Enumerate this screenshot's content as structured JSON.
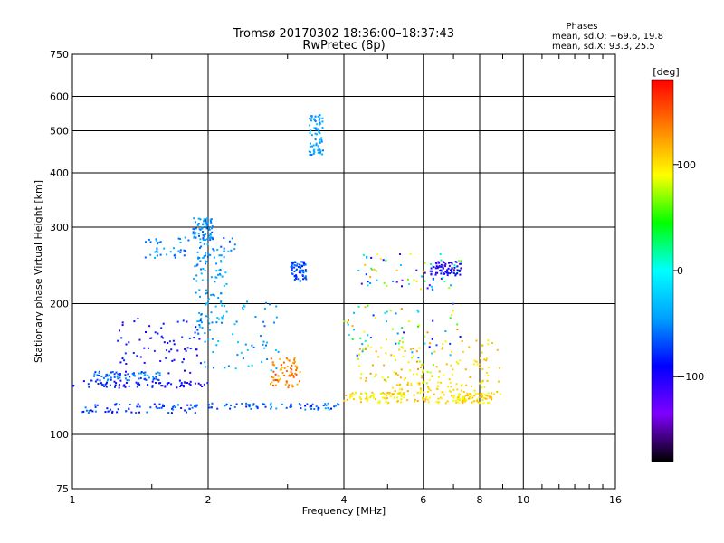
{
  "chart_data": {
    "type": "scatter",
    "title": "Tromsø 20170302 18:36:00–18:37:43",
    "subtitle": "RwPretec (8p)",
    "xlabel": "Frequency [MHz]",
    "ylabel": "Stationary phase Virtual Height [km]",
    "x_scale": "log",
    "y_scale": "log",
    "xlim": [
      1,
      16
    ],
    "ylim": [
      75,
      750
    ],
    "x_ticks": [
      1,
      2,
      4,
      6,
      8,
      10,
      16
    ],
    "x_tick_labels": [
      "1",
      "2",
      "4",
      "6",
      "8",
      "10",
      "16"
    ],
    "y_ticks": [
      75,
      100,
      200,
      300,
      400,
      500,
      600,
      750
    ],
    "y_tick_labels": [
      "75",
      "100",
      "200",
      "300",
      "400",
      "500",
      "600",
      "750"
    ],
    "grid": true,
    "info": {
      "heading": "Phases",
      "line1": "mean, sd,O: −69.6, 19.8",
      "line2": "mean, sd,X:  93.3, 25.5"
    },
    "colorbar": {
      "label": "[deg]",
      "ticks": [
        100,
        0,
        -100
      ],
      "tick_labels": [
        "100",
        "0",
        "−100"
      ],
      "range": [
        -180,
        180
      ]
    },
    "colors": [
      "#000000",
      "#7f00ff",
      "#0000ff",
      "#00a0ff",
      "#00ffff",
      "#00ff00",
      "#ffff00",
      "#ff8000",
      "#ff0000"
    ],
    "clusters": [
      {
        "name": "E-layer low trace",
        "f": [
          1.0,
          2.0
        ],
        "h": [
          128,
          133
        ],
        "phase": [
          -110,
          -70
        ]
      },
      {
        "name": "low trace 2",
        "f": [
          1.05,
          1.9
        ],
        "h": [
          112,
          118
        ],
        "phase": [
          -100,
          -50
        ]
      },
      {
        "name": "low trace cyan",
        "f": [
          2.0,
          3.9
        ],
        "h": [
          114,
          118
        ],
        "phase": [
          -90,
          -40
        ]
      },
      {
        "name": "low blue line",
        "f": [
          1.1,
          1.6
        ],
        "h": [
          133,
          140
        ],
        "phase": [
          -80,
          -40
        ]
      },
      {
        "name": "F1 blue cluster",
        "f": [
          1.25,
          1.95
        ],
        "h": [
          138,
          185
        ],
        "phase": [
          -110,
          -70
        ]
      },
      {
        "name": "cyan streaks",
        "f": [
          1.9,
          2.9
        ],
        "h": [
          140,
          205
        ],
        "phase": [
          -60,
          -20
        ]
      },
      {
        "name": "cyan column",
        "f": [
          1.85,
          2.2
        ],
        "h": [
          180,
          260
        ],
        "phase": [
          -60,
          -25
        ]
      },
      {
        "name": "upper layer cyan",
        "f": [
          1.45,
          2.3
        ],
        "h": [
          255,
          285
        ],
        "phase": [
          -70,
          -30
        ]
      },
      {
        "name": "high cyan",
        "f": [
          1.85,
          2.05
        ],
        "h": [
          280,
          315
        ],
        "phase": [
          -70,
          -30
        ]
      },
      {
        "name": "orange patch",
        "f": [
          2.75,
          3.2
        ],
        "h": [
          128,
          150
        ],
        "phase": [
          110,
          160
        ]
      },
      {
        "name": "plume 3.5",
        "f": [
          3.35,
          3.6
        ],
        "h": [
          440,
          545
        ],
        "phase": [
          -60,
          -30
        ]
      },
      {
        "name": "plume 3.1",
        "f": [
          3.05,
          3.3
        ],
        "h": [
          225,
          250
        ],
        "phase": [
          -90,
          -50
        ]
      },
      {
        "name": "E mid yellow",
        "f": [
          4.0,
          5.5
        ],
        "h": [
          118,
          125
        ],
        "phase": [
          80,
          120
        ]
      },
      {
        "name": "yellow lines",
        "f": [
          5.0,
          7.5
        ],
        "h": [
          118,
          132
        ],
        "phase": [
          90,
          120
        ]
      },
      {
        "name": "yellow rising",
        "f": [
          4.3,
          6.5
        ],
        "h": [
          130,
          160
        ],
        "phase": [
          70,
          130
        ]
      },
      {
        "name": "mixed F cluster",
        "f": [
          4.0,
          7.5
        ],
        "h": [
          150,
          200
        ],
        "phase": [
          -110,
          140
        ]
      },
      {
        "name": "upper F",
        "f": [
          4.2,
          7.3
        ],
        "h": [
          215,
          260
        ],
        "phase": [
          -130,
          120
        ]
      },
      {
        "name": "F2 blue",
        "f": [
          6.2,
          7.3
        ],
        "h": [
          232,
          250
        ],
        "phase": [
          -120,
          -80
        ]
      },
      {
        "name": "yellow trace 7-9",
        "f": [
          6.5,
          8.9
        ],
        "h": [
          120,
          165
        ],
        "phase": [
          90,
          120
        ]
      },
      {
        "name": "E right",
        "f": [
          7.0,
          8.5
        ],
        "h": [
          118,
          125
        ],
        "phase": [
          80,
          120
        ]
      }
    ]
  }
}
